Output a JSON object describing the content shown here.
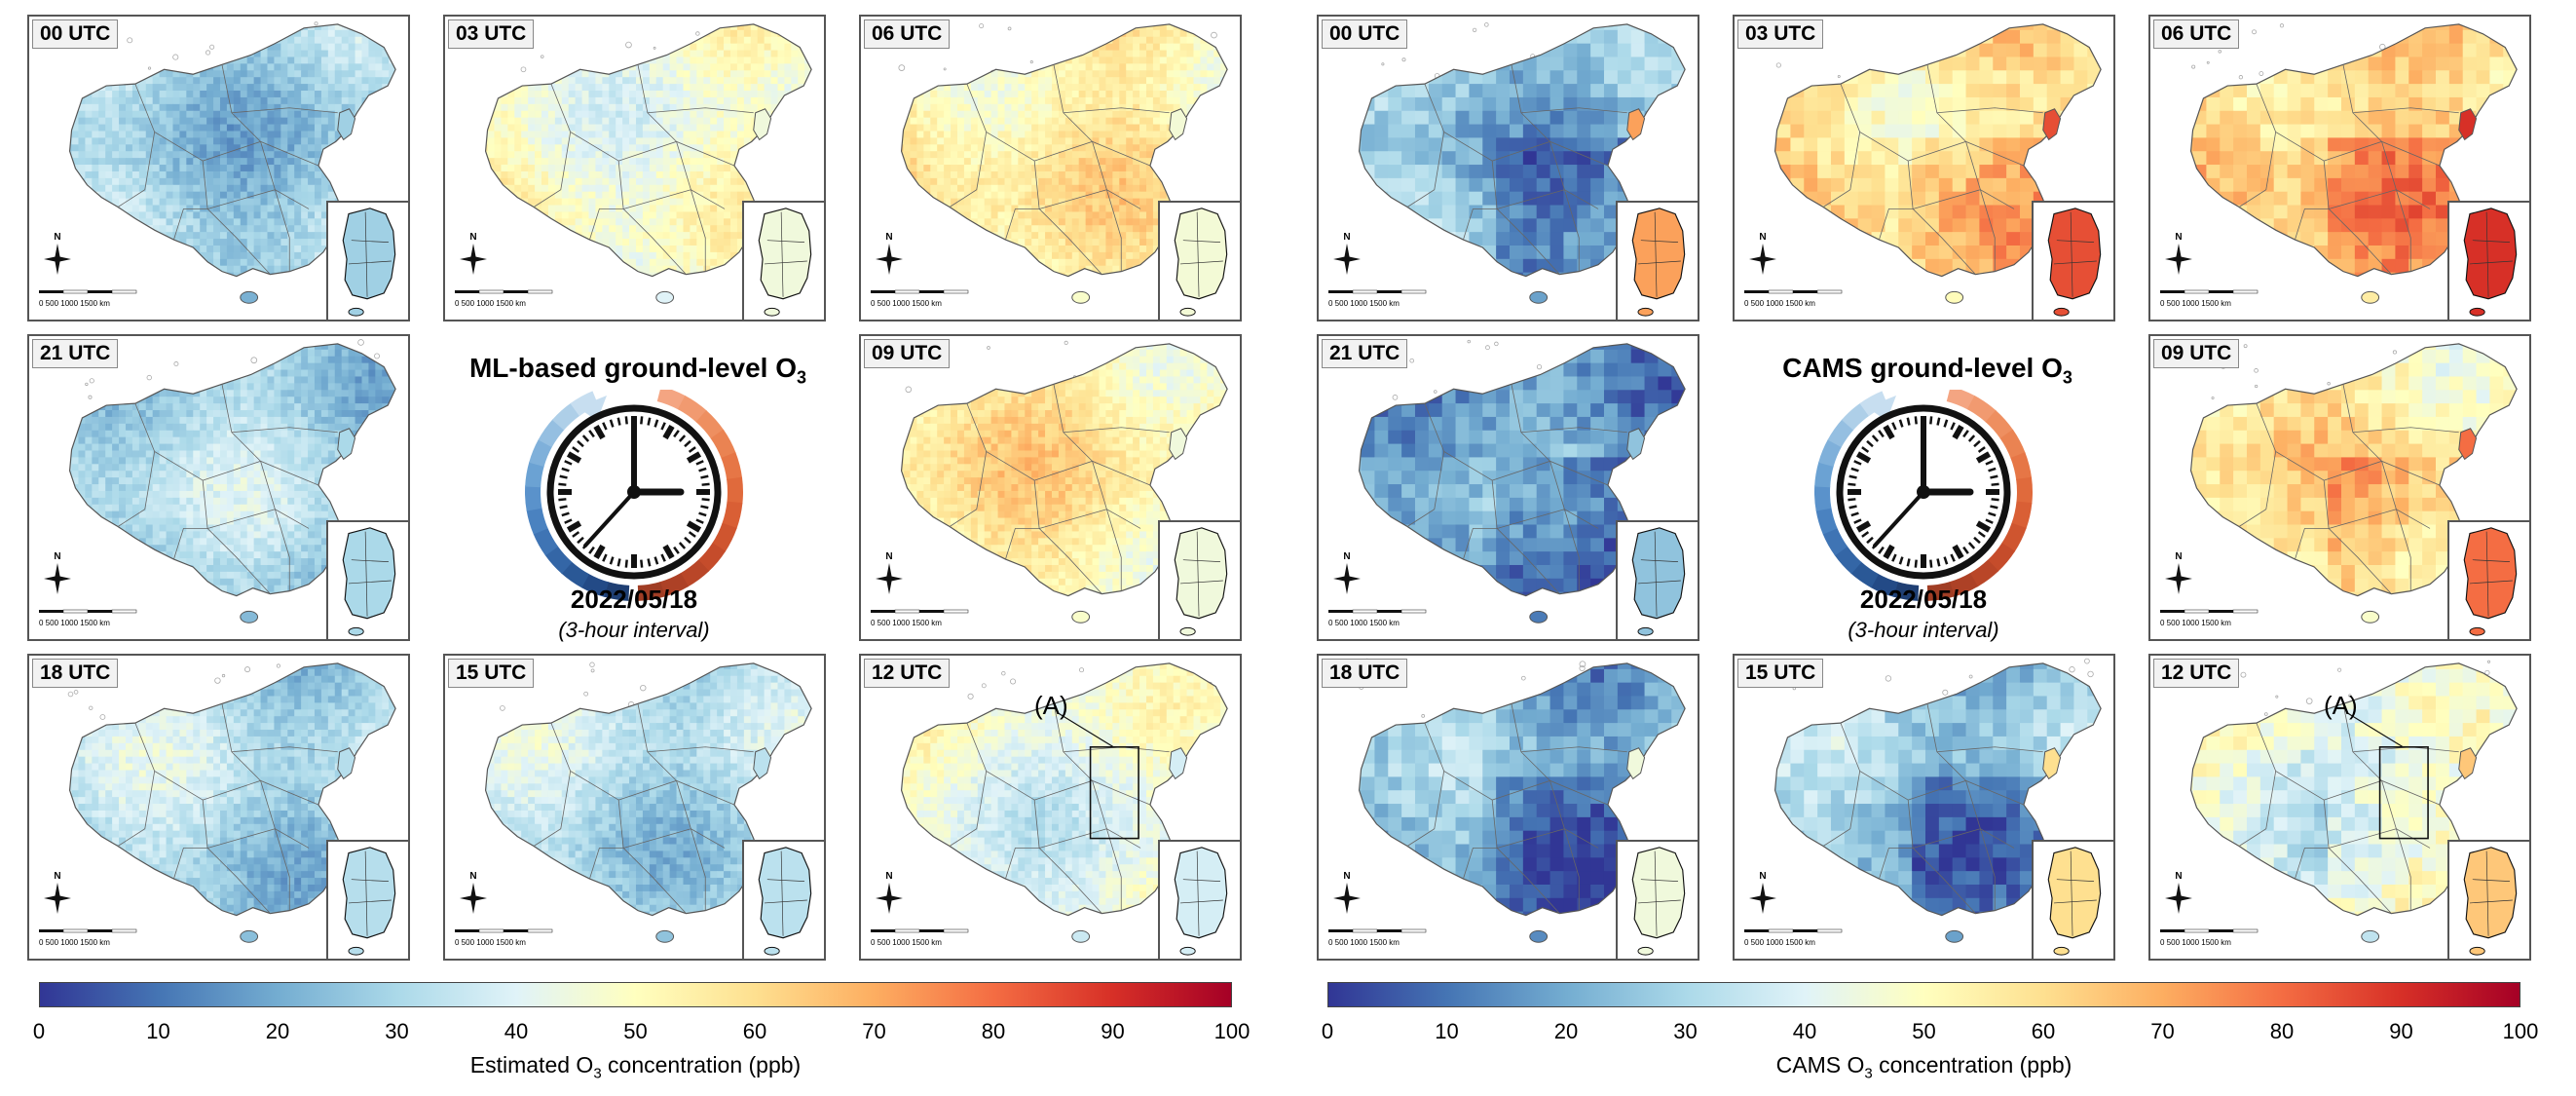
{
  "left": {
    "title_prefix": "ML-based ground-level O",
    "title_sub": "3",
    "date": "2022/05/18",
    "interval": "(3-hour interval)",
    "colorbar_label_prefix": "Estimated O",
    "colorbar_label_sub": "3",
    "colorbar_label_suffix": " concentration (ppb)",
    "panels": [
      {
        "time": "00 UTC",
        "level": 25,
        "korea_level": 28
      },
      {
        "time": "03 UTC",
        "level": 44,
        "korea_level": 45
      },
      {
        "time": "06 UTC",
        "level": 52,
        "korea_level": 46
      },
      {
        "time": "21 UTC",
        "level": 27,
        "korea_level": 30
      },
      {
        "time": "09 UTC",
        "level": 52,
        "korea_level": 45
      },
      {
        "time": "18 UTC",
        "level": 28,
        "korea_level": 32
      },
      {
        "time": "15 UTC",
        "level": 29,
        "korea_level": 33
      },
      {
        "time": "12 UTC",
        "level": 40,
        "korea_level": 38,
        "annotation": "(A)"
      }
    ]
  },
  "right": {
    "title_prefix": "CAMS ground-level O",
    "title_sub": "3",
    "date": "2022/05/18",
    "interval": "(3-hour interval)",
    "colorbar_label_prefix": "CAMS O",
    "colorbar_label_sub": "3",
    "colorbar_label_suffix": " concentration (ppb)",
    "panels": [
      {
        "time": "00 UTC",
        "level": 22,
        "korea_level": 72
      },
      {
        "time": "03 UTC",
        "level": 55,
        "korea_level": 85
      },
      {
        "time": "06 UTC",
        "level": 60,
        "korea_level": 90
      },
      {
        "time": "21 UTC",
        "level": 15,
        "korea_level": 25
      },
      {
        "time": "09 UTC",
        "level": 52,
        "korea_level": 80
      },
      {
        "time": "18 UTC",
        "level": 18,
        "korea_level": 45
      },
      {
        "time": "15 UTC",
        "level": 22,
        "korea_level": 60
      },
      {
        "time": "12 UTC",
        "level": 38,
        "korea_level": 65,
        "annotation": "(A)"
      }
    ]
  },
  "colorbar": {
    "ticks": [
      "0",
      "10",
      "20",
      "30",
      "40",
      "50",
      "60",
      "70",
      "80",
      "90",
      "100"
    ],
    "range": [
      0,
      100
    ],
    "colors": [
      "#313695",
      "#4575b4",
      "#74add1",
      "#abd9e9",
      "#e0f3f8",
      "#ffffbf",
      "#fee090",
      "#fdae61",
      "#f46d43",
      "#d73027",
      "#a50026"
    ]
  },
  "scale_text": "0  500  1000  1500 km",
  "compass_letter": "N"
}
